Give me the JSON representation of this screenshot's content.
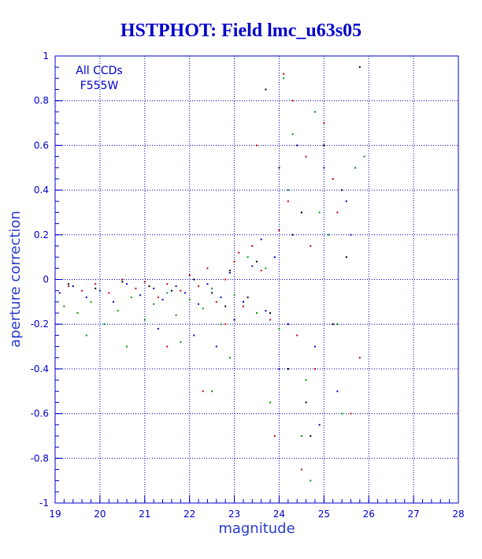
{
  "chart_data": {
    "type": "scatter",
    "title": "HSTPHOT: Field lmc_u63s05",
    "xlabel": "magnitude",
    "ylabel": "aperture correction",
    "xlim": [
      19,
      28
    ],
    "ylim": [
      -1,
      1
    ],
    "grid": true,
    "x_ticks": [
      "19",
      "20",
      "21",
      "22",
      "23",
      "24",
      "25",
      "26",
      "27",
      "28"
    ],
    "y_ticks": [
      "-1",
      "-0.8",
      "-0.6",
      "-0.4",
      "-0.2",
      "0",
      "0.2",
      "0.4",
      "0.6",
      "0.8",
      "1"
    ],
    "annotations": [
      "All CCDs",
      "F555W"
    ],
    "colors": {
      "axis": "#0000cc",
      "grid": "#0000cc",
      "title": "#0000cc"
    },
    "series": [
      {
        "color": "#cc0000",
        "x": [
          19.3,
          19.6,
          19.9,
          20.2,
          20.5,
          20.8,
          21.0,
          21.3,
          21.5,
          21.8,
          22.0,
          22.2,
          22.4,
          22.6,
          22.8,
          23.0,
          23.2,
          23.4,
          23.6,
          23.8,
          24.0,
          24.2,
          24.4,
          24.6,
          24.8,
          25.0,
          25.3,
          25.6,
          21.5,
          22.3,
          23.5,
          24.1,
          24.5,
          25.2,
          23.9,
          24.3,
          24.7,
          22.8,
          23.1,
          25.8
        ],
        "y": [
          -0.03,
          -0.05,
          -0.02,
          -0.06,
          0.0,
          -0.04,
          -0.01,
          -0.08,
          -0.02,
          -0.05,
          0.02,
          -0.03,
          0.05,
          -0.1,
          0.0,
          0.08,
          -0.12,
          0.15,
          0.04,
          -0.18,
          0.22,
          0.35,
          -0.25,
          0.55,
          -0.4,
          0.7,
          0.3,
          -0.6,
          -0.3,
          -0.5,
          0.6,
          0.92,
          -0.85,
          0.45,
          -0.7,
          0.8,
          0.15,
          -0.2,
          0.12,
          -0.35
        ]
      },
      {
        "color": "#009900",
        "x": [
          19.2,
          19.5,
          19.8,
          20.1,
          20.4,
          20.7,
          21.0,
          21.2,
          21.5,
          21.7,
          22.0,
          22.3,
          22.5,
          22.7,
          23.0,
          23.2,
          23.5,
          23.7,
          24.0,
          24.2,
          24.4,
          24.6,
          24.8,
          25.1,
          25.4,
          25.7,
          19.7,
          20.6,
          21.8,
          22.9,
          23.3,
          24.1,
          24.5,
          24.9,
          25.3,
          23.8,
          24.3,
          22.5,
          25.9,
          24.7
        ],
        "y": [
          -0.12,
          -0.15,
          -0.1,
          -0.2,
          -0.14,
          -0.08,
          -0.18,
          -0.11,
          -0.06,
          -0.16,
          -0.09,
          -0.13,
          -0.04,
          -0.2,
          -0.07,
          -0.1,
          -0.15,
          0.05,
          -0.22,
          0.4,
          0.6,
          -0.45,
          0.75,
          0.2,
          -0.6,
          0.5,
          -0.25,
          -0.3,
          -0.28,
          -0.35,
          0.1,
          0.9,
          -0.7,
          0.3,
          -0.2,
          -0.55,
          0.65,
          -0.5,
          0.55,
          -0.9
        ]
      },
      {
        "color": "#0000cc",
        "x": [
          19.1,
          19.4,
          19.7,
          20.0,
          20.3,
          20.6,
          20.9,
          21.2,
          21.4,
          21.7,
          21.9,
          22.2,
          22.4,
          22.7,
          22.9,
          23.2,
          23.4,
          23.7,
          23.9,
          24.2,
          24.5,
          24.8,
          25.0,
          25.3,
          25.6,
          22.1,
          23.0,
          23.6,
          24.4,
          24.9,
          25.5,
          21.3,
          22.6,
          24.0
        ],
        "y": [
          -0.06,
          -0.03,
          -0.08,
          -0.05,
          -0.1,
          -0.02,
          -0.07,
          -0.04,
          -0.09,
          -0.03,
          -0.06,
          -0.11,
          -0.02,
          -0.08,
          0.03,
          -0.1,
          0.06,
          -0.14,
          0.1,
          -0.2,
          0.3,
          -0.3,
          0.5,
          -0.5,
          0.2,
          -0.25,
          -0.18,
          0.18,
          0.6,
          -0.65,
          0.35,
          -0.22,
          -0.3,
          -0.4
        ]
      },
      {
        "color": "#000000",
        "x": [
          19.3,
          19.9,
          20.5,
          21.1,
          21.6,
          22.1,
          22.5,
          22.9,
          23.3,
          23.7,
          24.0,
          24.2,
          24.5,
          24.7,
          25.0,
          25.2,
          25.5,
          25.8,
          23.8,
          24.3,
          24.6,
          25.4,
          22.8,
          23.5
        ],
        "y": [
          -0.02,
          -0.04,
          -0.01,
          -0.03,
          -0.05,
          0.0,
          -0.06,
          0.04,
          -0.08,
          0.85,
          0.5,
          -0.4,
          0.3,
          -0.7,
          0.6,
          -0.2,
          0.1,
          0.95,
          -0.15,
          0.2,
          -0.55,
          0.4,
          -0.12,
          0.08
        ]
      }
    ]
  }
}
